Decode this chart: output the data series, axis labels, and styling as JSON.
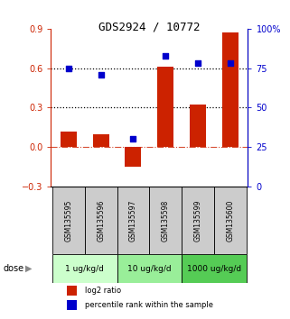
{
  "title": "GDS2924 / 10772",
  "samples": [
    "GSM135595",
    "GSM135596",
    "GSM135597",
    "GSM135598",
    "GSM135599",
    "GSM135600"
  ],
  "log2_ratio": [
    0.12,
    0.1,
    -0.15,
    0.61,
    0.32,
    0.87
  ],
  "percentile_rank": [
    75,
    71,
    30,
    83,
    78,
    78
  ],
  "bar_color": "#cc2200",
  "dot_color": "#0000cc",
  "left_ylim": [
    -0.3,
    0.9
  ],
  "right_ylim": [
    0,
    100
  ],
  "left_yticks": [
    -0.3,
    0.0,
    0.3,
    0.6,
    0.9
  ],
  "right_yticks": [
    0,
    25,
    50,
    75,
    100
  ],
  "right_yticklabels": [
    "0",
    "25",
    "50",
    "75",
    "100%"
  ],
  "hlines": [
    0.3,
    0.6
  ],
  "zero_line": 0.0,
  "dose_groups": [
    {
      "label": "1 ug/kg/d",
      "cols": [
        0,
        1
      ],
      "color": "#ccffcc"
    },
    {
      "label": "10 ug/kg/d",
      "cols": [
        2,
        3
      ],
      "color": "#99ee99"
    },
    {
      "label": "1000 ug/kg/d",
      "cols": [
        4,
        5
      ],
      "color": "#55cc55"
    }
  ],
  "dose_label": "dose",
  "legend_bar_label": "log2 ratio",
  "legend_dot_label": "percentile rank within the sample",
  "bg_color": "#ffffff",
  "plot_bg_color": "#ffffff",
  "tick_label_color_left": "#cc2200",
  "tick_label_color_right": "#0000cc",
  "sample_bg_color": "#cccccc"
}
